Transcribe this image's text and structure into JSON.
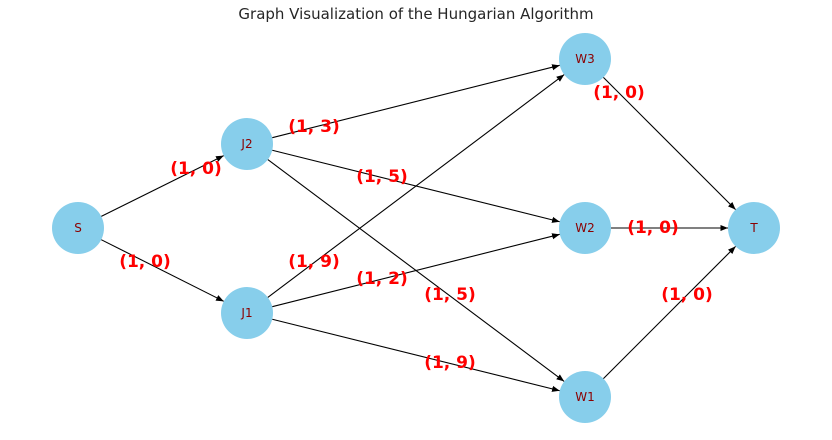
{
  "title": "Graph Visualization of the Hungarian Algorithm",
  "colors": {
    "node_fill": "#87ceeb",
    "node_label": "#8b0000",
    "edge": "#000000",
    "edge_label": "#ff0000"
  },
  "nodes": [
    {
      "id": "S",
      "label": "S"
    },
    {
      "id": "J2",
      "label": "J2"
    },
    {
      "id": "J1",
      "label": "J1"
    },
    {
      "id": "W3",
      "label": "W3"
    },
    {
      "id": "W2",
      "label": "W2"
    },
    {
      "id": "W1",
      "label": "W1"
    },
    {
      "id": "T",
      "label": "T"
    }
  ],
  "edges": [
    {
      "from": "S",
      "to": "J2",
      "label": "(1, 0)"
    },
    {
      "from": "S",
      "to": "J1",
      "label": "(1, 0)"
    },
    {
      "from": "J2",
      "to": "W3",
      "label": "(1, 3)"
    },
    {
      "from": "J2",
      "to": "W2",
      "label": "(1, 5)"
    },
    {
      "from": "J2",
      "to": "W1",
      "label": "(1, 5)"
    },
    {
      "from": "J1",
      "to": "W3",
      "label": "(1, 9)"
    },
    {
      "from": "J1",
      "to": "W2",
      "label": "(1, 2)"
    },
    {
      "from": "J1",
      "to": "W1",
      "label": "(1, 9)"
    },
    {
      "from": "W3",
      "to": "T",
      "label": "(1, 0)"
    },
    {
      "from": "W2",
      "to": "T",
      "label": "(1, 0)"
    },
    {
      "from": "W1",
      "to": "T",
      "label": "(1, 0)"
    }
  ]
}
